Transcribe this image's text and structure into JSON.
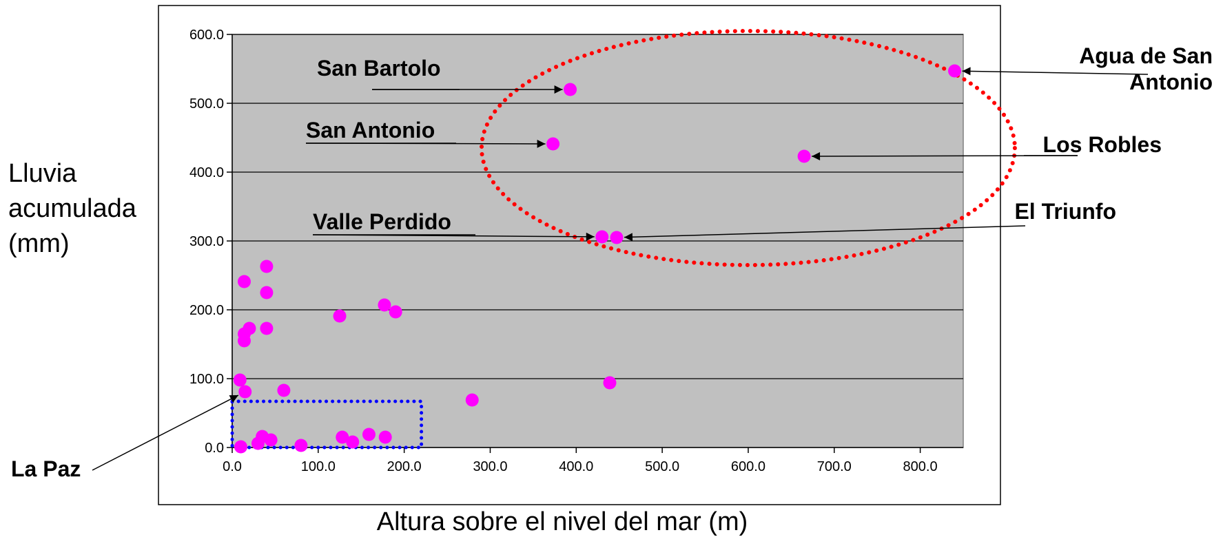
{
  "chart_data": {
    "type": "scatter",
    "title": "",
    "xlabel": "Altura sobre el nivel del mar (m)",
    "ylabel": "Lluvia acumulada (mm)",
    "ylabel_lines": [
      "Lluvia",
      "acumulada",
      "(mm)"
    ],
    "xlim": [
      0,
      850
    ],
    "ylim": [
      0,
      600
    ],
    "grid": "horizontal",
    "x_ticks": [
      0,
      100,
      200,
      300,
      400,
      500,
      600,
      700,
      800
    ],
    "y_ticks": [
      0,
      100,
      200,
      300,
      400,
      500,
      600
    ],
    "x_tick_labels": [
      "0.0",
      "100.0",
      "200.0",
      "300.0",
      "400.0",
      "500.0",
      "600.0",
      "700.0",
      "800.0"
    ],
    "y_tick_labels": [
      "0.0",
      "100.0",
      "200.0",
      "300.0",
      "400.0",
      "500.0",
      "600.0"
    ],
    "plot_background": "#c0c0c0",
    "marker_color": "#ff00ff",
    "points": [
      {
        "x": 840,
        "y": 547
      },
      {
        "x": 393,
        "y": 520
      },
      {
        "x": 373,
        "y": 441
      },
      {
        "x": 665,
        "y": 423
      },
      {
        "x": 430,
        "y": 306
      },
      {
        "x": 447,
        "y": 305
      },
      {
        "x": 40,
        "y": 263
      },
      {
        "x": 14,
        "y": 241
      },
      {
        "x": 40,
        "y": 225
      },
      {
        "x": 177,
        "y": 207
      },
      {
        "x": 190,
        "y": 197
      },
      {
        "x": 125,
        "y": 191
      },
      {
        "x": 20,
        "y": 173
      },
      {
        "x": 40,
        "y": 173
      },
      {
        "x": 14,
        "y": 165
      },
      {
        "x": 14,
        "y": 155
      },
      {
        "x": 9,
        "y": 98
      },
      {
        "x": 439,
        "y": 94
      },
      {
        "x": 60,
        "y": 83
      },
      {
        "x": 15,
        "y": 81
      },
      {
        "x": 279,
        "y": 69
      },
      {
        "x": 159,
        "y": 19
      },
      {
        "x": 35,
        "y": 16
      },
      {
        "x": 128,
        "y": 15
      },
      {
        "x": 178,
        "y": 15
      },
      {
        "x": 45,
        "y": 11
      },
      {
        "x": 140,
        "y": 8
      },
      {
        "x": 30,
        "y": 6
      },
      {
        "x": 80,
        "y": 3
      },
      {
        "x": 10,
        "y": 1
      }
    ],
    "annotations": [
      {
        "text": "San Bartolo",
        "target": [
          393,
          520
        ]
      },
      {
        "text": "San Antonio",
        "target": [
          373,
          441
        ]
      },
      {
        "text": "Valle Perdido",
        "target": [
          430,
          306
        ]
      },
      {
        "text": "El Triunfo",
        "target": [
          447,
          305
        ]
      },
      {
        "text": "Los Robles",
        "target": [
          665,
          423
        ]
      },
      {
        "text": "Agua de San Antonio",
        "lines": [
          "Agua de San",
          "Antonio"
        ],
        "target": [
          840,
          547
        ]
      },
      {
        "text": "La Paz",
        "target": [
          15,
          81
        ]
      }
    ],
    "highlight_regions": [
      {
        "shape": "ellipse",
        "style": "dotted",
        "color": "#ff0000",
        "cx": 600,
        "cy": 435,
        "rx": 310,
        "ry": 170
      },
      {
        "shape": "rect",
        "style": "dotted",
        "color": "#0000ff",
        "x0": 0,
        "x1": 220,
        "y0": 0,
        "y1": 67
      }
    ]
  }
}
